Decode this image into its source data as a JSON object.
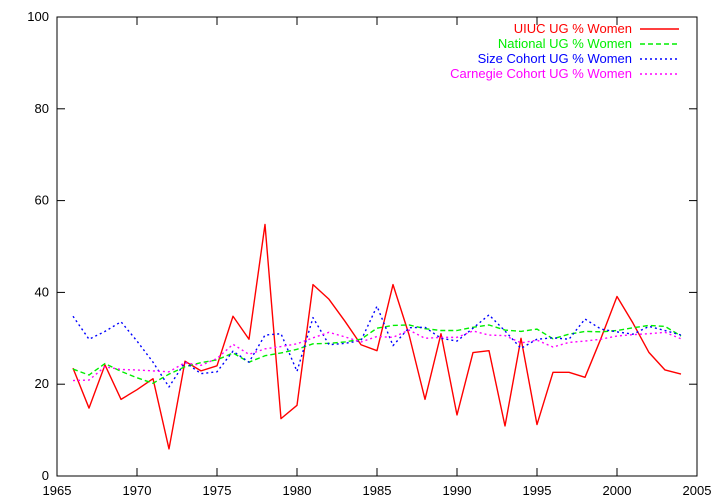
{
  "chart_data": {
    "type": "line",
    "title": "",
    "xlabel": "",
    "ylabel": "",
    "xlim": [
      1965,
      2005
    ],
    "ylim": [
      0,
      100
    ],
    "x_ticks": [
      1965,
      1970,
      1975,
      1980,
      1985,
      1990,
      1995,
      2000,
      2005
    ],
    "y_ticks": [
      0,
      20,
      40,
      60,
      80,
      100
    ],
    "x_tick_labels": [
      "1965",
      "1970",
      "1975",
      "1980",
      "1985",
      "1990",
      "1995",
      "2000",
      "2005"
    ],
    "y_tick_labels": [
      "0",
      "20",
      "40",
      "60",
      "80",
      "100"
    ],
    "grid": false,
    "legend_position": "top-right",
    "x": [
      1966,
      1967,
      1968,
      1969,
      1970,
      1971,
      1972,
      1973,
      1974,
      1975,
      1976,
      1977,
      1978,
      1979,
      1980,
      1981,
      1982,
      1983,
      1984,
      1985,
      1986,
      1987,
      1988,
      1989,
      1990,
      1991,
      1992,
      1993,
      1994,
      1995,
      1996,
      1997,
      1998,
      1999,
      2000,
      2001,
      2002,
      2003,
      2004
    ],
    "series": [
      {
        "name": "UIUC UG % Women",
        "color": "#ff0000",
        "dash": "solid",
        "values": [
          23.5,
          14.8,
          24.2,
          16.7,
          18.8,
          21.2,
          5.9,
          25.0,
          22.9,
          24.0,
          34.8,
          29.8,
          54.8,
          12.5,
          15.4,
          41.7,
          38.5,
          33.7,
          28.6,
          27.3,
          41.7,
          30.8,
          16.7,
          31.0,
          13.3,
          26.9,
          27.3,
          10.9,
          30.0,
          11.2,
          22.6,
          22.6,
          21.5,
          30.0,
          39.1,
          33.3,
          26.9,
          23.1,
          22.2
        ]
      },
      {
        "name": "National UG % Women",
        "color": "#00ee00",
        "dash": "dashed",
        "values": [
          23.3,
          22.0,
          24.5,
          22.8,
          21.4,
          20.2,
          22.2,
          23.8,
          24.7,
          25.3,
          26.8,
          24.8,
          26.2,
          26.8,
          27.6,
          28.8,
          28.9,
          29.2,
          29.8,
          32.2,
          32.8,
          32.9,
          32.1,
          31.7,
          31.7,
          32.4,
          32.9,
          31.8,
          31.5,
          32.0,
          29.9,
          30.9,
          31.5,
          31.4,
          31.7,
          32.3,
          32.8,
          32.6,
          30.5
        ]
      },
      {
        "name": "Size Cohort UG % Women",
        "color": "#0000ff",
        "dash": "dotted",
        "values": [
          34.8,
          29.8,
          31.5,
          33.6,
          29.4,
          24.8,
          19.4,
          24.8,
          22.3,
          22.7,
          27.2,
          24.8,
          30.7,
          31.0,
          22.8,
          34.5,
          28.6,
          28.9,
          29.5,
          37.0,
          28.4,
          32.3,
          32.4,
          30.0,
          29.4,
          32.2,
          35.1,
          31.6,
          27.8,
          29.8,
          30.1,
          29.8,
          34.2,
          32.0,
          31.4,
          30.9,
          32.6,
          31.7,
          30.7
        ]
      },
      {
        "name": "Carnegie Cohort UG % Women",
        "color": "#ff00ff",
        "dash": "dotted",
        "values": [
          20.8,
          20.9,
          23.8,
          23.2,
          23.1,
          22.9,
          22.7,
          24.7,
          24.1,
          25.6,
          28.7,
          26.5,
          27.7,
          28.2,
          28.8,
          30.1,
          31.3,
          30.3,
          29.2,
          30.4,
          30.2,
          31.8,
          30.0,
          30.2,
          30.2,
          31.6,
          30.7,
          30.6,
          29.0,
          29.6,
          28.1,
          29.1,
          29.4,
          29.8,
          30.5,
          30.8,
          31.0,
          31.3,
          29.9
        ]
      }
    ]
  }
}
